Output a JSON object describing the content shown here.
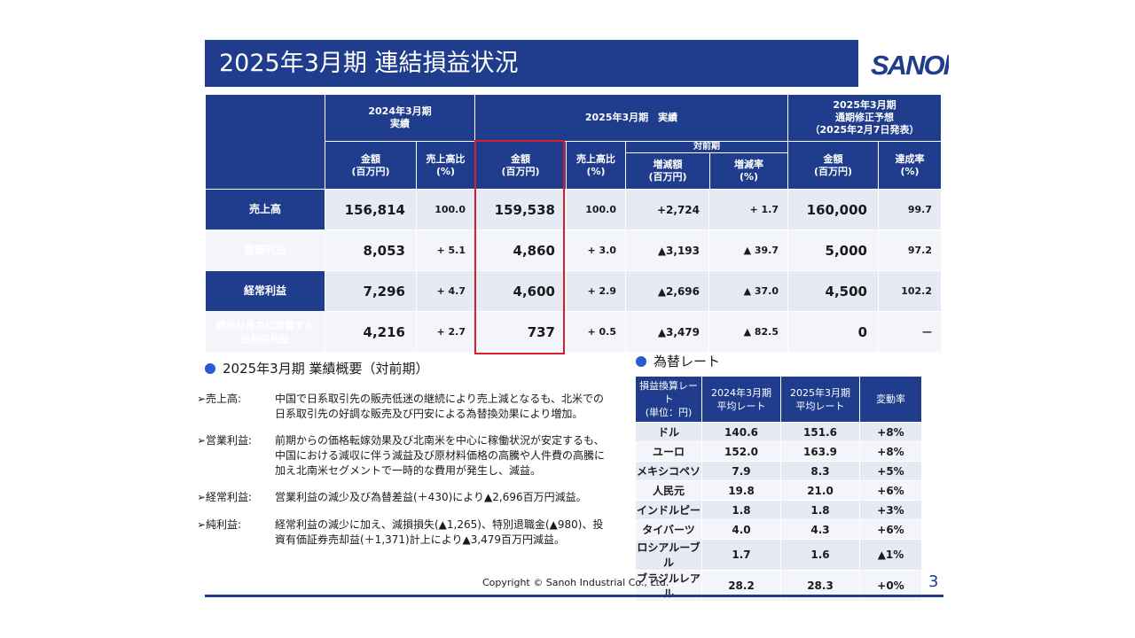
{
  "title": "2025年3月期 連結損益状況",
  "logo_text": "SANOh",
  "main_table": {
    "group_headers": {
      "fy2024": "2024年3月期\n実績",
      "fy2025": "2025年3月期　実績",
      "forecast": "2025年3月期\n通期修正予想\n（2025年2月7日発表）",
      "yoy": "対前期"
    },
    "col_headers": {
      "amount": "金額\n(百万円)",
      "ratio": "売上高比\n(%)",
      "change_amount": "増減額\n(百万円)",
      "change_rate": "増減率\n(%)",
      "achievement": "達成率\n(%)"
    },
    "rows": [
      {
        "label": "売上高",
        "fy24_amt": "156,814",
        "fy24_ratio": "100.0",
        "fy25_amt": "159,538",
        "fy25_ratio": "100.0",
        "chg_amt": "+2,724",
        "chg_rate": "+ 1.7",
        "fc_amt": "160,000",
        "achieve": "99.7"
      },
      {
        "label": "営業利益",
        "fy24_amt": "8,053",
        "fy24_ratio": "+ 5.1",
        "fy25_amt": "4,860",
        "fy25_ratio": "+ 3.0",
        "chg_amt": "▲3,193",
        "chg_rate": "▲ 39.7",
        "fc_amt": "5,000",
        "achieve": "97.2"
      },
      {
        "label": "経常利益",
        "fy24_amt": "7,296",
        "fy24_ratio": "+ 4.7",
        "fy25_amt": "4,600",
        "fy25_ratio": "+ 2.9",
        "chg_amt": "▲2,696",
        "chg_rate": "▲ 37.0",
        "fc_amt": "4,500",
        "achieve": "102.2"
      },
      {
        "label": "親会社株主に帰属する\n当期純利益",
        "fy24_amt": "4,216",
        "fy24_ratio": "+ 2.7",
        "fy25_amt": "737",
        "fy25_ratio": "+ 0.5",
        "chg_amt": "▲3,479",
        "chg_rate": "▲ 82.5",
        "fc_amt": "0",
        "achieve": "—"
      }
    ]
  },
  "summary": {
    "heading": "2025年3月期 業績概要（対前期）",
    "items": [
      {
        "label": "➢売上高:",
        "text": "中国で日系取引先の販売低迷の継続により売上減となるも、北米での日系取引先の好調な販売及び円安による為替換効果により増加。"
      },
      {
        "label": "➢営業利益:",
        "text": "前期からの価格転嫁効果及び北南米を中心に稼働状況が安定するも、中国における減収に伴う減益及び原材料価格の高騰や人件費の高騰に加え北南米セグメントで一時的な費用が発生し、減益。"
      },
      {
        "label": "➢経常利益:",
        "text": "営業利益の減少及び為替差益(＋430)により▲2,696百万円減益。"
      },
      {
        "label": "➢純利益:",
        "text": "経常利益の減少に加え、減損損失(▲1,265)、特別退職金(▲980)、投資有価証券売却益(＋1,371)計上により▲3,479百万円減益。"
      }
    ]
  },
  "fx": {
    "heading": "為替レート",
    "headers": [
      "損益換算レート\n(単位：円)",
      "2024年3月期\n平均レート",
      "2025年3月期\n平均レート",
      "変動率"
    ],
    "rows": [
      [
        "ドル",
        "140.6",
        "151.6",
        "+8%"
      ],
      [
        "ユーロ",
        "152.0",
        "163.9",
        "+8%"
      ],
      [
        "メキシコペソ",
        "7.9",
        "8.3",
        "+5%"
      ],
      [
        "人民元",
        "19.8",
        "21.0",
        "+6%"
      ],
      [
        "インドルピー",
        "1.8",
        "1.8",
        "+3%"
      ],
      [
        "タイバーツ",
        "4.0",
        "4.3",
        "+6%"
      ],
      [
        "ロシアルーブル",
        "1.7",
        "1.6",
        "▲1%"
      ],
      [
        "ブラジルレアル",
        "28.2",
        "28.3",
        "+0%"
      ]
    ]
  },
  "footer": {
    "copyright": "Copyright © Sanoh Industrial Co., Ltd.",
    "page": "3"
  },
  "colors": {
    "navy": "#1f3d8c",
    "highlight": "#d81f26",
    "bullet_dot": "#2a5bd0"
  }
}
